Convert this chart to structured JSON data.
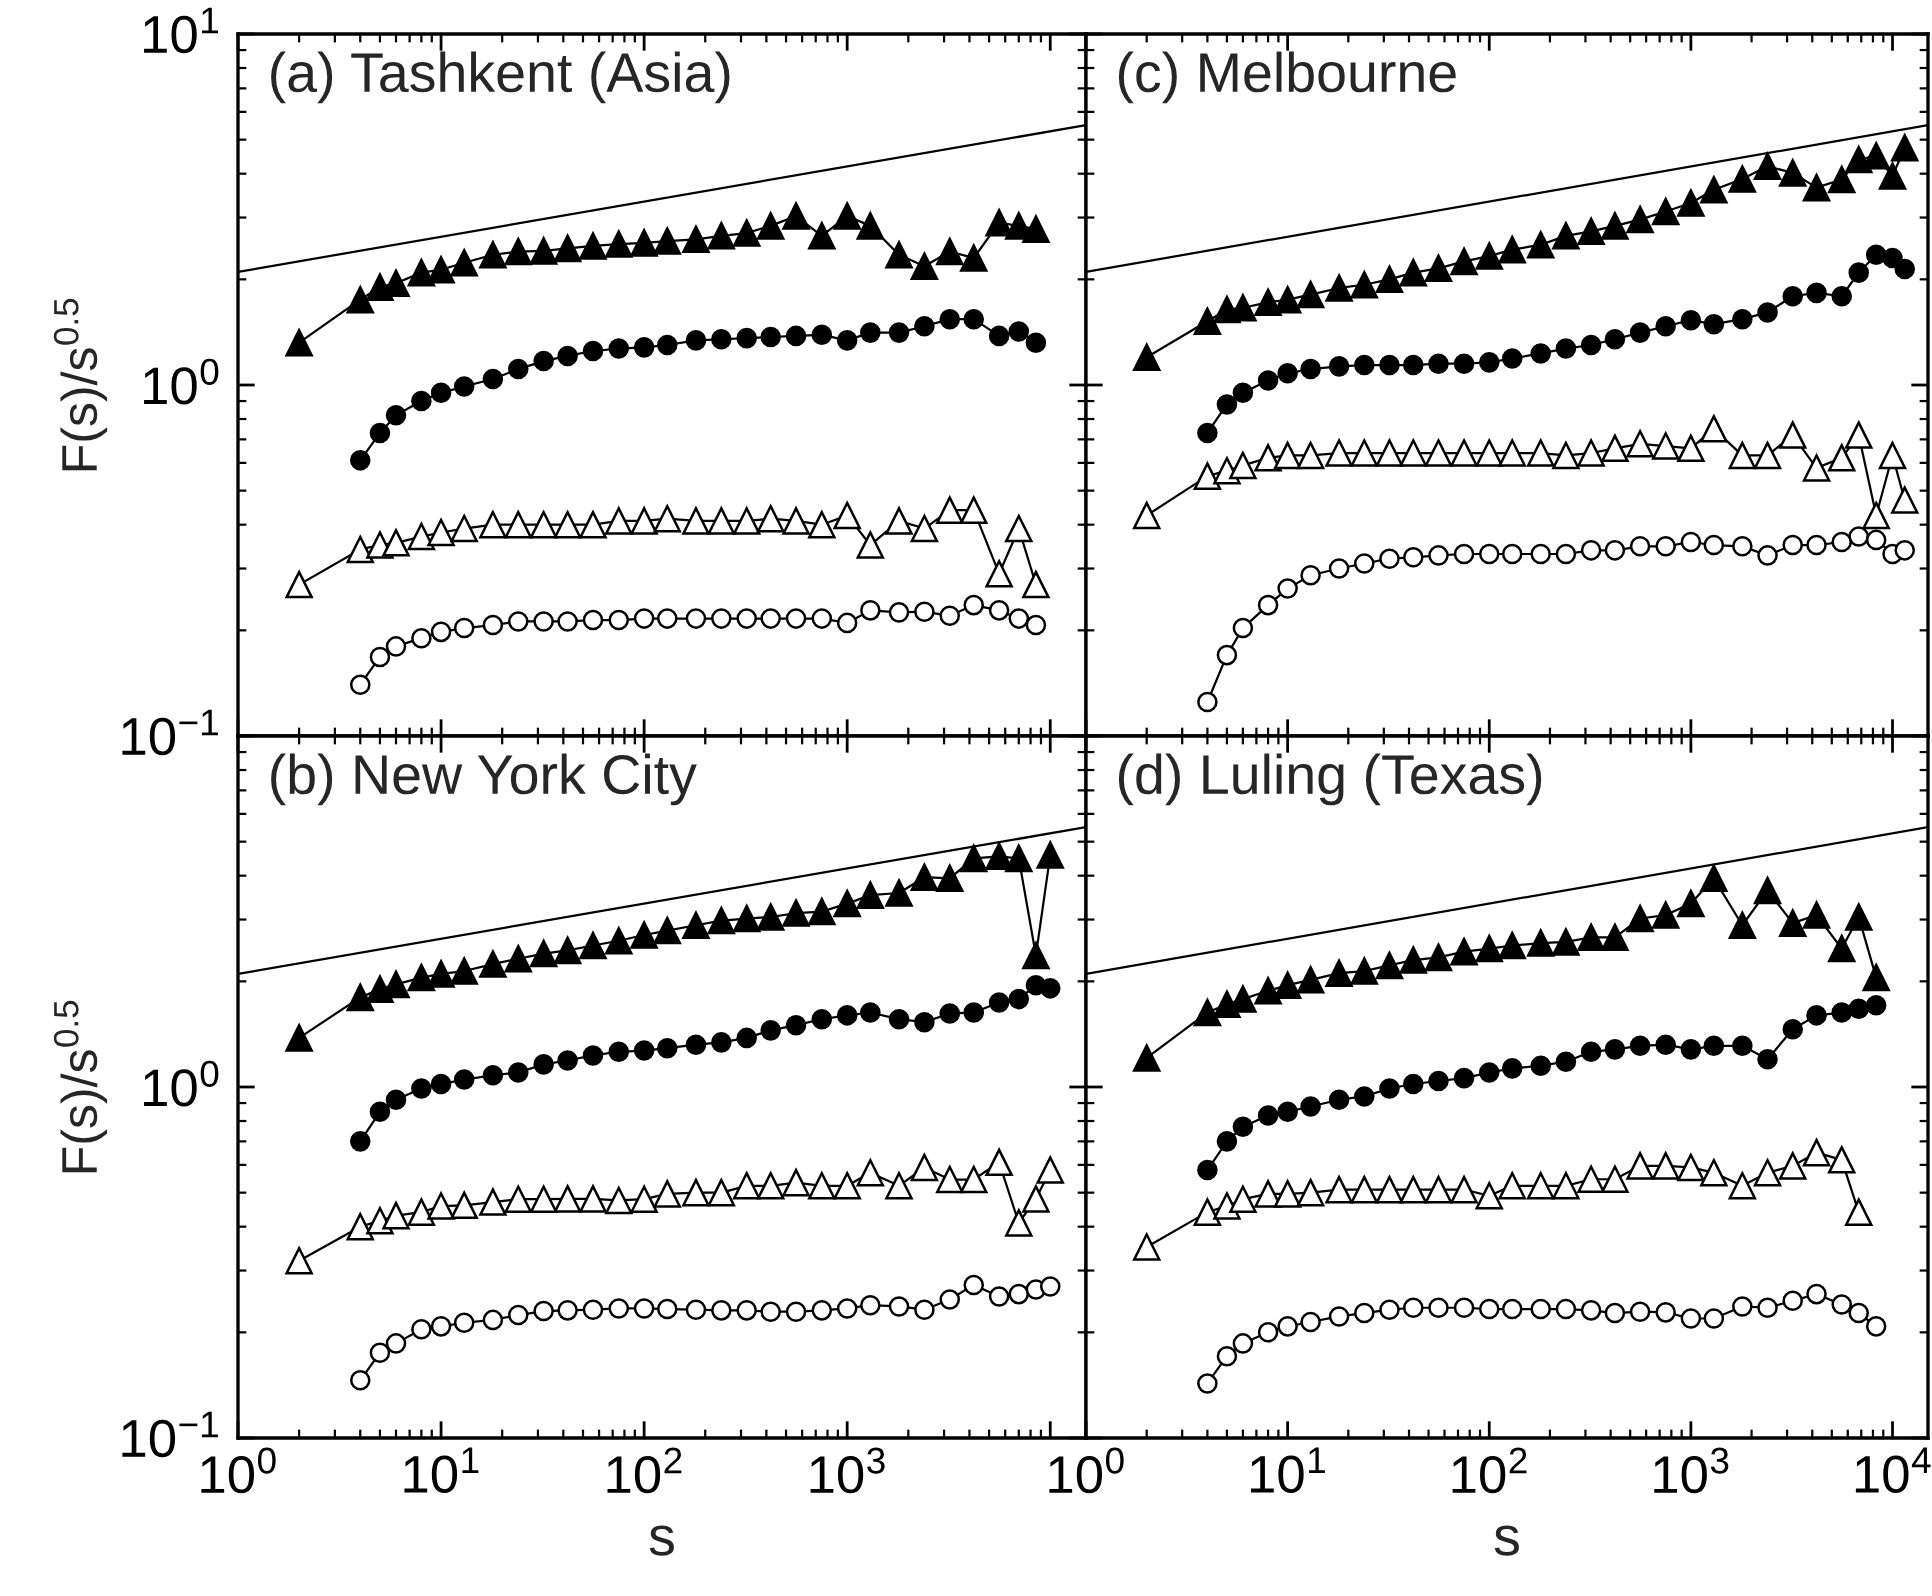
{
  "chart_data": [
    {
      "type": "line",
      "title": "(a) Tashkent (Asia)",
      "ylabel": "F(s)/s$^{0.5}$",
      "log": "xy",
      "tick_labels": "y",
      "xlim": [
        1,
        15000
      ],
      "ylim": [
        0.1,
        10
      ],
      "xticks": [
        {
          "value": 1,
          "label": null
        },
        {
          "value": 10,
          "label": null
        },
        {
          "value": 100,
          "label": null
        },
        {
          "value": 1000,
          "label": null
        },
        {
          "value": 10000,
          "label": null
        }
      ],
      "yticks": [
        {
          "value": 0.1,
          "label": "10$^{−1}$"
        },
        {
          "value": 1,
          "label": "10$^{0}$"
        },
        {
          "value": 10,
          "label": "10$^{1}$"
        }
      ],
      "x": [
        2,
        4,
        5,
        6,
        8,
        10,
        13,
        18,
        24,
        32,
        42,
        56,
        75,
        100,
        130,
        180,
        240,
        320,
        420,
        560,
        750,
        1000,
        1300,
        1800,
        2400,
        3200,
        4200,
        5600,
        7000,
        8500
      ],
      "series": [
        {
          "marker": "triangle",
          "color": "#000000",
          "values": [
            1.32,
            1.75,
            1.9,
            1.95,
            2.09,
            2.13,
            2.23,
            2.35,
            2.4,
            2.41,
            2.45,
            2.49,
            2.52,
            2.54,
            2.57,
            2.6,
            2.66,
            2.71,
            2.84,
            3.03,
            2.66,
            3.03,
            2.84,
            2.35,
            2.18,
            2.4,
            2.3,
            2.9,
            2.84,
            2.78
          ]
        },
        {
          "marker": "circle",
          "color": "#000000",
          "x": [
            4,
            5,
            6,
            8,
            10,
            13,
            18,
            24,
            32,
            42,
            56,
            75,
            100,
            130,
            180,
            240,
            320,
            420,
            560,
            750,
            1000,
            1300,
            1800,
            2400,
            3200,
            4200,
            5600,
            7000,
            8500
          ],
          "values": [
            0.61,
            0.73,
            0.82,
            0.9,
            0.95,
            0.99,
            1.04,
            1.11,
            1.17,
            1.21,
            1.25,
            1.27,
            1.28,
            1.3,
            1.34,
            1.35,
            1.36,
            1.37,
            1.38,
            1.39,
            1.34,
            1.41,
            1.41,
            1.47,
            1.54,
            1.54,
            1.38,
            1.42,
            1.32
          ]
        },
        {
          "marker": "triangle",
          "color": "#ffffff",
          "values": [
            0.27,
            0.34,
            0.35,
            0.355,
            0.37,
            0.38,
            0.39,
            0.4,
            0.4,
            0.4,
            0.4,
            0.4,
            0.41,
            0.41,
            0.416,
            0.41,
            0.41,
            0.41,
            0.416,
            0.41,
            0.4,
            0.425,
            0.35,
            0.41,
            0.39,
            0.44,
            0.44,
            0.29,
            0.39,
            0.27
          ]
        },
        {
          "marker": "circle",
          "color": "#ffffff",
          "x": [
            4,
            5,
            6,
            8,
            10,
            13,
            18,
            24,
            32,
            42,
            56,
            75,
            100,
            130,
            180,
            240,
            320,
            420,
            560,
            750,
            1000,
            1300,
            1800,
            2400,
            3200,
            4200,
            5600,
            7000,
            8500
          ],
          "values": [
            0.14,
            0.168,
            0.18,
            0.19,
            0.198,
            0.203,
            0.207,
            0.212,
            0.212,
            0.212,
            0.214,
            0.214,
            0.216,
            0.216,
            0.216,
            0.216,
            0.216,
            0.216,
            0.216,
            0.216,
            0.21,
            0.228,
            0.225,
            0.226,
            0.22,
            0.236,
            0.228,
            0.216,
            0.207
          ]
        },
        {
          "type": "line",
          "marker": "none",
          "color": "#000000",
          "x": [
            1,
            15000
          ],
          "values": [
            2.1,
            5.5
          ]
        }
      ]
    },
    {
      "type": "line",
      "title": "(c) Melbourne",
      "log": "xy",
      "tick_labels": false,
      "xlim": [
        1,
        15000
      ],
      "ylim": [
        0.1,
        10
      ],
      "xticks": [
        {
          "value": 1,
          "label": null
        },
        {
          "value": 10,
          "label": null
        },
        {
          "value": 100,
          "label": null
        },
        {
          "value": 1000,
          "label": null
        },
        {
          "value": 10000,
          "label": null
        }
      ],
      "yticks": [
        {
          "value": 0.1,
          "label": null
        },
        {
          "value": 1,
          "label": null
        },
        {
          "value": 10,
          "label": null
        }
      ],
      "x": [
        2,
        4,
        5,
        6,
        8,
        10,
        13,
        18,
        24,
        32,
        42,
        56,
        75,
        100,
        130,
        180,
        240,
        320,
        420,
        560,
        750,
        1000,
        1300,
        1800,
        2400,
        3200,
        4200,
        5600,
        6800,
        8300,
        10000,
        11500
      ],
      "series": [
        {
          "marker": "triangle",
          "color": "#000000",
          "values": [
            1.2,
            1.52,
            1.64,
            1.66,
            1.72,
            1.75,
            1.81,
            1.89,
            1.93,
            2.0,
            2.09,
            2.15,
            2.25,
            2.33,
            2.43,
            2.51,
            2.66,
            2.74,
            2.84,
            2.96,
            3.12,
            3.3,
            3.6,
            3.86,
            4.2,
            4.02,
            3.65,
            3.85,
            4.39,
            4.5,
            3.94,
            4.74
          ]
        },
        {
          "marker": "circle",
          "color": "#000000",
          "x": [
            4,
            5,
            6,
            8,
            10,
            13,
            18,
            24,
            32,
            42,
            56,
            75,
            100,
            130,
            180,
            240,
            320,
            420,
            560,
            750,
            1000,
            1300,
            1800,
            2400,
            3200,
            4200,
            5600,
            6800,
            8300,
            10000,
            11500
          ],
          "values": [
            0.73,
            0.88,
            0.95,
            1.03,
            1.08,
            1.11,
            1.13,
            1.14,
            1.14,
            1.14,
            1.15,
            1.15,
            1.16,
            1.19,
            1.23,
            1.27,
            1.3,
            1.35,
            1.41,
            1.47,
            1.53,
            1.49,
            1.54,
            1.61,
            1.79,
            1.83,
            1.79,
            2.09,
            2.35,
            2.3,
            2.14
          ]
        },
        {
          "marker": "triangle",
          "color": "#ffffff",
          "values": [
            0.425,
            0.55,
            0.57,
            0.59,
            0.62,
            0.63,
            0.63,
            0.64,
            0.64,
            0.64,
            0.64,
            0.64,
            0.64,
            0.64,
            0.64,
            0.64,
            0.63,
            0.64,
            0.66,
            0.68,
            0.67,
            0.66,
            0.75,
            0.63,
            0.63,
            0.72,
            0.58,
            0.62,
            0.72,
            0.425,
            0.63,
            0.47
          ]
        },
        {
          "marker": "circle",
          "color": "#ffffff",
          "x": [
            4,
            5,
            6,
            8,
            10,
            13,
            18,
            24,
            32,
            42,
            56,
            75,
            100,
            130,
            180,
            240,
            320,
            420,
            560,
            750,
            1000,
            1300,
            1800,
            2400,
            3200,
            4200,
            5600,
            6800,
            8300,
            10000,
            11500
          ],
          "values": [
            0.125,
            0.17,
            0.203,
            0.236,
            0.263,
            0.287,
            0.3,
            0.31,
            0.32,
            0.323,
            0.327,
            0.33,
            0.33,
            0.33,
            0.33,
            0.33,
            0.338,
            0.338,
            0.347,
            0.347,
            0.357,
            0.35,
            0.347,
            0.327,
            0.35,
            0.35,
            0.357,
            0.37,
            0.362,
            0.33,
            0.338
          ]
        },
        {
          "type": "line",
          "marker": "none",
          "color": "#000000",
          "x": [
            1,
            15000
          ],
          "values": [
            2.1,
            5.5
          ]
        }
      ]
    },
    {
      "type": "line",
      "title": "(b) New York City",
      "xlabel": "s",
      "ylabel": "F(s)/s$^{0.5}$",
      "log": "xy",
      "xlim": [
        1,
        15000
      ],
      "ylim": [
        0.1,
        10
      ],
      "xticks": [
        {
          "value": 1,
          "label": "10$^{0}$"
        },
        {
          "value": 10,
          "label": "10$^{1}$"
        },
        {
          "value": 100,
          "label": "10$^{2}$"
        },
        {
          "value": 1000,
          "label": "10$^{3}$"
        },
        {
          "value": 10000,
          "label": null
        }
      ],
      "yticks": [
        {
          "value": 0.1,
          "label": "10$^{−1}$"
        },
        {
          "value": 1,
          "label": "10$^{0}$"
        },
        {
          "value": 10,
          "label": null
        }
      ],
      "x": [
        2,
        4,
        5,
        6,
        8,
        10,
        13,
        18,
        24,
        32,
        42,
        56,
        75,
        100,
        130,
        180,
        240,
        320,
        420,
        560,
        750,
        1000,
        1300,
        1800,
        2400,
        3200,
        4200,
        5600,
        7000,
        8500,
        10000
      ],
      "series": [
        {
          "marker": "triangle",
          "color": "#000000",
          "values": [
            1.38,
            1.8,
            1.9,
            1.96,
            2.05,
            2.1,
            2.14,
            2.24,
            2.32,
            2.4,
            2.45,
            2.53,
            2.61,
            2.71,
            2.79,
            2.89,
            2.98,
            3.02,
            3.05,
            3.13,
            3.16,
            3.33,
            3.52,
            3.57,
            3.96,
            3.93,
            4.48,
            4.54,
            4.48,
            2.37,
            4.58
          ]
        },
        {
          "marker": "circle",
          "color": "#000000",
          "x": [
            4,
            5,
            6,
            8,
            10,
            13,
            18,
            24,
            32,
            42,
            56,
            75,
            100,
            130,
            180,
            240,
            320,
            420,
            560,
            750,
            1000,
            1300,
            1800,
            2400,
            3200,
            4200,
            5600,
            7000,
            8500,
            10000
          ],
          "values": [
            0.7,
            0.85,
            0.92,
            0.99,
            1.02,
            1.05,
            1.08,
            1.1,
            1.16,
            1.19,
            1.23,
            1.26,
            1.27,
            1.29,
            1.32,
            1.34,
            1.38,
            1.45,
            1.5,
            1.56,
            1.6,
            1.63,
            1.56,
            1.53,
            1.62,
            1.63,
            1.74,
            1.78,
            1.95,
            1.91
          ]
        },
        {
          "marker": "triangle",
          "color": "#ffffff",
          "values": [
            0.32,
            0.4,
            0.416,
            0.43,
            0.44,
            0.458,
            0.46,
            0.47,
            0.479,
            0.479,
            0.48,
            0.48,
            0.475,
            0.479,
            0.496,
            0.5,
            0.5,
            0.523,
            0.523,
            0.534,
            0.523,
            0.523,
            0.57,
            0.523,
            0.59,
            0.545,
            0.545,
            0.61,
            0.41,
            0.48,
            0.58
          ]
        },
        {
          "marker": "circle",
          "color": "#ffffff",
          "x": [
            4,
            5,
            6,
            8,
            10,
            13,
            18,
            24,
            32,
            42,
            56,
            75,
            100,
            130,
            180,
            240,
            320,
            420,
            560,
            750,
            1000,
            1300,
            1800,
            2400,
            3200,
            4200,
            5600,
            7000,
            8500,
            10000
          ],
          "values": [
            0.146,
            0.175,
            0.186,
            0.204,
            0.208,
            0.213,
            0.217,
            0.224,
            0.23,
            0.231,
            0.232,
            0.234,
            0.234,
            0.233,
            0.232,
            0.231,
            0.231,
            0.229,
            0.229,
            0.231,
            0.234,
            0.239,
            0.237,
            0.232,
            0.248,
            0.273,
            0.253,
            0.257,
            0.265,
            0.27
          ]
        },
        {
          "type": "line",
          "marker": "none",
          "color": "#000000",
          "x": [
            1,
            15000
          ],
          "values": [
            2.1,
            5.5
          ]
        }
      ]
    },
    {
      "type": "line",
      "title": "(d) Luling (Texas)",
      "xlabel": "s",
      "log": "xy",
      "tick_labels": "x",
      "xlim": [
        1,
        15000
      ],
      "ylim": [
        0.1,
        10
      ],
      "xticks": [
        {
          "value": 1,
          "label": "10$^{0}$"
        },
        {
          "value": 10,
          "label": "10$^{1}$"
        },
        {
          "value": 100,
          "label": "10$^{2}$"
        },
        {
          "value": 1000,
          "label": "10$^{3}$"
        },
        {
          "value": 10000,
          "label": "10$^{4}$"
        }
      ],
      "yticks": [
        {
          "value": 0.1,
          "label": null
        },
        {
          "value": 1,
          "label": null
        },
        {
          "value": 10,
          "label": null
        }
      ],
      "x": [
        2,
        4,
        5,
        6,
        8,
        10,
        13,
        18,
        24,
        32,
        42,
        56,
        75,
        100,
        130,
        180,
        240,
        320,
        420,
        560,
        750,
        1000,
        1300,
        1800,
        2400,
        3200,
        4200,
        5600,
        6800,
        8300
      ],
      "series": [
        {
          "marker": "triangle",
          "color": "#000000",
          "values": [
            1.21,
            1.63,
            1.72,
            1.78,
            1.88,
            1.95,
            2.02,
            2.11,
            2.14,
            2.22,
            2.3,
            2.34,
            2.43,
            2.48,
            2.53,
            2.57,
            2.59,
            2.67,
            2.67,
            3.02,
            3.09,
            3.33,
            3.93,
            2.89,
            3.63,
            2.93,
            3.09,
            2.48,
            3.05,
            2.05
          ]
        },
        {
          "marker": "circle",
          "color": "#000000",
          "x": [
            4,
            5,
            6,
            8,
            10,
            13,
            18,
            24,
            32,
            42,
            56,
            75,
            100,
            130,
            180,
            240,
            320,
            420,
            560,
            750,
            1000,
            1300,
            1800,
            2400,
            3200,
            4200,
            5600,
            6800,
            8300
          ],
          "values": [
            0.58,
            0.7,
            0.77,
            0.83,
            0.85,
            0.88,
            0.92,
            0.94,
            0.99,
            1.02,
            1.04,
            1.06,
            1.1,
            1.13,
            1.15,
            1.18,
            1.26,
            1.28,
            1.31,
            1.32,
            1.28,
            1.31,
            1.31,
            1.2,
            1.46,
            1.6,
            1.63,
            1.67,
            1.71
          ]
        },
        {
          "marker": "triangle",
          "color": "#ffffff",
          "x": [
            2,
            4,
            5,
            6,
            8,
            10,
            13,
            18,
            24,
            32,
            42,
            56,
            75,
            100,
            130,
            180,
            240,
            320,
            420,
            560,
            750,
            1000,
            1300,
            1800,
            2400,
            3200,
            4200,
            5600,
            6800
          ],
          "values": [
            0.35,
            0.44,
            0.458,
            0.479,
            0.496,
            0.496,
            0.5,
            0.51,
            0.51,
            0.51,
            0.51,
            0.51,
            0.51,
            0.49,
            0.523,
            0.523,
            0.523,
            0.546,
            0.546,
            0.596,
            0.596,
            0.59,
            0.57,
            0.523,
            0.57,
            0.596,
            0.65,
            0.62,
            0.44
          ]
        },
        {
          "marker": "circle",
          "color": "#ffffff",
          "x": [
            4,
            5,
            6,
            8,
            10,
            13,
            18,
            24,
            32,
            42,
            56,
            75,
            100,
            130,
            180,
            240,
            320,
            420,
            560,
            750,
            1000,
            1300,
            1800,
            2400,
            3200,
            4200,
            5600,
            6800,
            8300
          ],
          "values": [
            0.143,
            0.171,
            0.186,
            0.2,
            0.208,
            0.214,
            0.222,
            0.227,
            0.232,
            0.235,
            0.235,
            0.235,
            0.233,
            0.233,
            0.233,
            0.233,
            0.231,
            0.227,
            0.229,
            0.228,
            0.219,
            0.219,
            0.237,
            0.235,
            0.246,
            0.257,
            0.24,
            0.227,
            0.208
          ]
        },
        {
          "type": "line",
          "marker": "none",
          "color": "#000000",
          "x": [
            1,
            15000
          ],
          "values": [
            2.1,
            5.5
          ]
        }
      ]
    }
  ]
}
